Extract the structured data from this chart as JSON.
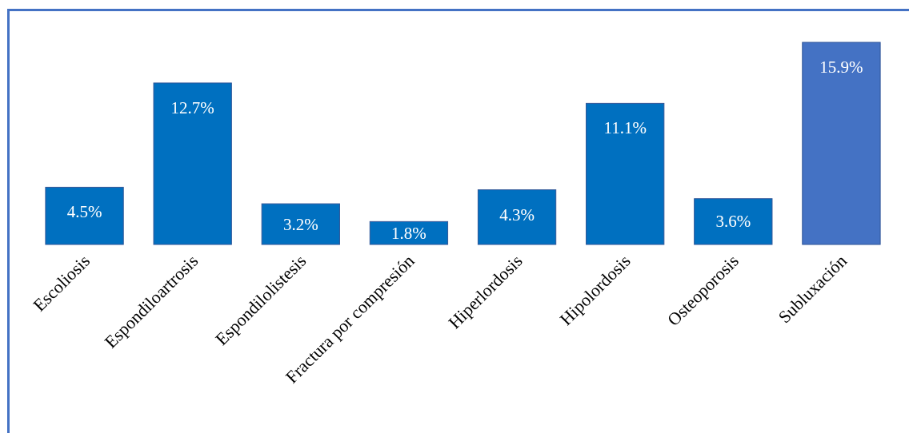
{
  "chart_data": {
    "type": "bar",
    "categories": [
      "Escoliosis",
      "Espondiloartrosis",
      "Espondilolistesis",
      "Fractura por compresión",
      "Hiperlordosis",
      "Hipolordosis",
      "Osteoporosis",
      "Subluxación"
    ],
    "values": [
      4.5,
      12.7,
      3.2,
      1.8,
      4.3,
      11.1,
      3.6,
      15.9
    ],
    "colors": [
      "#0070c0",
      "#0070c0",
      "#0070c0",
      "#0070c0",
      "#0070c0",
      "#0070c0",
      "#0070c0",
      "#4472c4"
    ],
    "value_labels": [
      "4.5%",
      "12.7%",
      "3.2%",
      "1.8%",
      "4.3%",
      "11.1%",
      "3.6%",
      "15.9%"
    ]
  }
}
